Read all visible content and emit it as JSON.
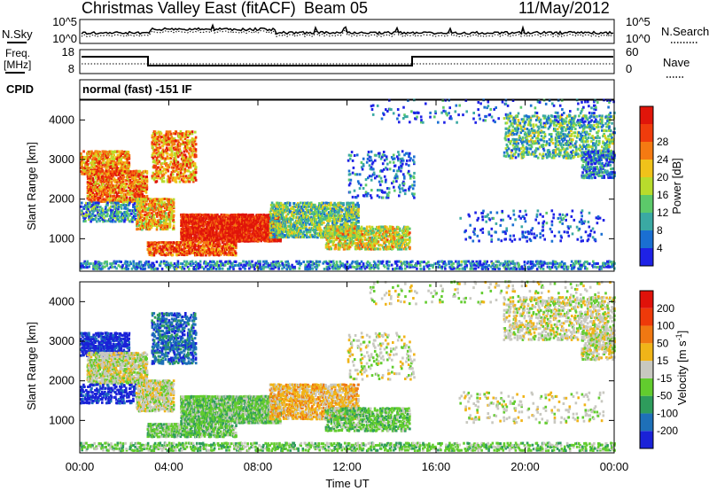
{
  "header": {
    "title": "Christmas Valley East (fitACF)",
    "beam": "Beam 05",
    "date": "11/May/2012"
  },
  "nsky_panel": {
    "left_label": "N.Sky",
    "right_label": "N.Search",
    "left_ticks": [
      "10^5",
      "10^0"
    ],
    "right_ticks": [
      "10^5",
      "10^0"
    ]
  },
  "freq_panel": {
    "label_line1": "Freq.",
    "label_line2": "[MHz]",
    "left_ticks": [
      "18",
      "8"
    ],
    "right_ticks": [
      "60",
      "0"
    ],
    "right_label": "Nave"
  },
  "cpid": {
    "label": "CPID",
    "value": "normal (fast) -151 IF"
  },
  "colors": {
    "background": "#ffffff",
    "axis": "#000000"
  },
  "chart_data": [
    {
      "type": "heatmap",
      "name": "power",
      "xlabel": "Time UT",
      "ylabel": "Slant Range [km]",
      "xlim": [
        0,
        24
      ],
      "ylim": [
        180,
        4500
      ],
      "x_ticks": [
        "00:00",
        "04:00",
        "08:00",
        "12:00",
        "16:00",
        "20:00",
        "00:00"
      ],
      "y_ticks": [
        1000,
        2000,
        3000,
        4000
      ],
      "colorbar": {
        "label": "Power [dB]",
        "ticks": [
          4,
          8,
          12,
          16,
          20,
          24,
          28
        ],
        "colors": [
          "#1e22e6",
          "#1a6fd2",
          "#3aa9a3",
          "#5cc96a",
          "#b8dc2c",
          "#f0c21a",
          "#f57a12",
          "#f03c0c",
          "#e0150a"
        ]
      }
    },
    {
      "type": "heatmap",
      "name": "velocity",
      "xlabel": "Time UT",
      "ylabel": "Slant Range [km]",
      "xlim": [
        0,
        24
      ],
      "ylim": [
        180,
        4500
      ],
      "x_ticks": [
        "00:00",
        "04:00",
        "08:00",
        "12:00",
        "16:00",
        "20:00",
        "00:00"
      ],
      "y_ticks": [
        1000,
        2000,
        3000,
        4000
      ],
      "colorbar": {
        "label": "Velocity [m s^-1]",
        "ticks": [
          "200",
          "100",
          "50",
          "15",
          "-15",
          "-50",
          "-100",
          "-200"
        ],
        "colors": [
          "#1a22d8",
          "#1e70b8",
          "#2e9c5c",
          "#62cc2e",
          "#c8c8c0",
          "#f0b418",
          "#f07812",
          "#ee3a0a",
          "#e0120a"
        ]
      }
    }
  ]
}
